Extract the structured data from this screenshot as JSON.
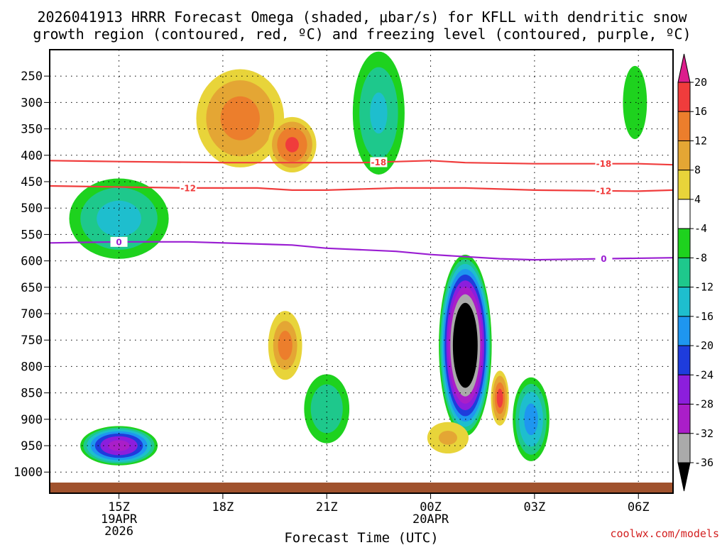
{
  "chart_data": {
    "type": "heatmap",
    "title_lines": [
      "2026041913 HRRR Forecast Omega (shaded, μbar/s) for KFLL with dendritic snow",
      "growth region (contoured, red, ºC) and freezing level (contoured, purple, ºC)"
    ],
    "xlabel": "Forecast Time (UTC)",
    "credit": "coolwx.com/models",
    "x_hours": [
      15,
      18,
      21,
      24,
      27,
      30
    ],
    "x_range_hours": [
      13.0,
      31.0
    ],
    "x_ticks": [
      {
        "hour": 15,
        "label": "15Z",
        "sub": [
          "19APR",
          "2026"
        ]
      },
      {
        "hour": 18,
        "label": "18Z",
        "sub": []
      },
      {
        "hour": 21,
        "label": "21Z",
        "sub": []
      },
      {
        "hour": 24,
        "label": "00Z",
        "sub": [
          "20APR"
        ]
      },
      {
        "hour": 27,
        "label": "03Z",
        "sub": []
      },
      {
        "hour": 30,
        "label": "06Z",
        "sub": []
      }
    ],
    "y_levels_hpa": [
      250,
      300,
      350,
      400,
      450,
      500,
      550,
      600,
      650,
      700,
      750,
      800,
      850,
      900,
      950,
      1000
    ],
    "y_range_hpa": [
      200,
      1040
    ],
    "colorbar": {
      "labels": [
        "20",
        "16",
        "12",
        "8",
        "4",
        "-4",
        "-8",
        "-12",
        "-16",
        "-20",
        "-24",
        "-28",
        "-32",
        "-36"
      ],
      "bins": [
        {
          "lo": 16,
          "hi": 20,
          "color": "#f03c3c"
        },
        {
          "lo": 12,
          "hi": 16,
          "color": "#ec7e2c"
        },
        {
          "lo": 8,
          "hi": 12,
          "color": "#e4a634"
        },
        {
          "lo": 4,
          "hi": 8,
          "color": "#e8d43a"
        },
        {
          "lo": -4,
          "hi": 4,
          "color": "#ffffff"
        },
        {
          "lo": -8,
          "hi": -4,
          "color": "#1ed21e"
        },
        {
          "lo": -12,
          "hi": -8,
          "color": "#1ec88c"
        },
        {
          "lo": -16,
          "hi": -12,
          "color": "#1ebece"
        },
        {
          "lo": -20,
          "hi": -16,
          "color": "#1e96f0"
        },
        {
          "lo": -24,
          "hi": -20,
          "color": "#1e3cdc"
        },
        {
          "lo": -28,
          "hi": -24,
          "color": "#8c1edc"
        },
        {
          "lo": -32,
          "hi": -28,
          "color": "#aa1ec8"
        },
        {
          "lo": -36,
          "hi": -32,
          "color": "#aaaaaa"
        }
      ],
      "over_color": "#dc1e8c",
      "under_color": "#000000"
    },
    "contours": [
      {
        "value": "-18",
        "color": "#f03c3c",
        "points": [
          [
            13.0,
            410
          ],
          [
            15,
            412
          ],
          [
            18,
            414
          ],
          [
            21,
            414
          ],
          [
            22,
            414
          ],
          [
            24,
            410
          ],
          [
            25,
            414
          ],
          [
            27,
            416
          ],
          [
            30,
            416
          ],
          [
            31.0,
            418
          ]
        ],
        "label_hours": [
          22.5,
          29.0
        ]
      },
      {
        "value": "-12",
        "color": "#f03c3c",
        "points": [
          [
            13.0,
            458
          ],
          [
            15,
            460
          ],
          [
            17,
            462
          ],
          [
            19,
            462
          ],
          [
            20,
            466
          ],
          [
            21,
            466
          ],
          [
            23,
            462
          ],
          [
            25,
            462
          ],
          [
            27,
            466
          ],
          [
            30,
            468
          ],
          [
            31.0,
            466
          ]
        ],
        "label_hours": [
          17.0,
          29.0
        ]
      },
      {
        "value": "0",
        "color": "#9a1ed2",
        "points": [
          [
            13.0,
            566
          ],
          [
            15,
            564
          ],
          [
            17,
            564
          ],
          [
            20,
            570
          ],
          [
            21,
            576
          ],
          [
            23,
            582
          ],
          [
            24,
            588
          ],
          [
            25,
            592
          ],
          [
            26,
            596
          ],
          [
            27,
            598
          ],
          [
            29,
            596
          ],
          [
            31.0,
            594
          ]
        ],
        "label_hours": [
          15.0,
          29.0
        ]
      }
    ],
    "omega_features": [
      {
        "hour": 15.0,
        "p": 520,
        "radius_hours": 1.7,
        "radius_hpa": 90,
        "peak": -14
      },
      {
        "hour": 15.0,
        "p": 950,
        "radius_hours": 1.2,
        "radius_hpa": 40,
        "peak": -30
      },
      {
        "hour": 18.5,
        "p": 330,
        "radius_hours": 1.5,
        "radius_hpa": 110,
        "peak": 14
      },
      {
        "hour": 20.0,
        "p": 380,
        "radius_hours": 0.8,
        "radius_hpa": 60,
        "peak": 17
      },
      {
        "hour": 22.5,
        "p": 320,
        "radius_hours": 0.9,
        "radius_hpa": 140,
        "peak": -13
      },
      {
        "hour": 19.8,
        "p": 760,
        "radius_hours": 0.6,
        "radius_hpa": 80,
        "peak": 12
      },
      {
        "hour": 21.0,
        "p": 880,
        "radius_hours": 0.8,
        "radius_hpa": 80,
        "peak": -12
      },
      {
        "hour": 25.0,
        "p": 760,
        "radius_hours": 0.8,
        "radius_hpa": 180,
        "peak": -45
      },
      {
        "hour": 26.0,
        "p": 860,
        "radius_hours": 0.3,
        "radius_hpa": 60,
        "peak": 16
      },
      {
        "hour": 26.9,
        "p": 900,
        "radius_hours": 0.6,
        "radius_hpa": 90,
        "peak": -18
      },
      {
        "hour": 29.9,
        "p": 300,
        "radius_hours": 0.6,
        "radius_hpa": 120,
        "peak": -6
      },
      {
        "hour": 24.5,
        "p": 935,
        "radius_hours": 0.8,
        "radius_hpa": 40,
        "peak": 9
      }
    ]
  }
}
